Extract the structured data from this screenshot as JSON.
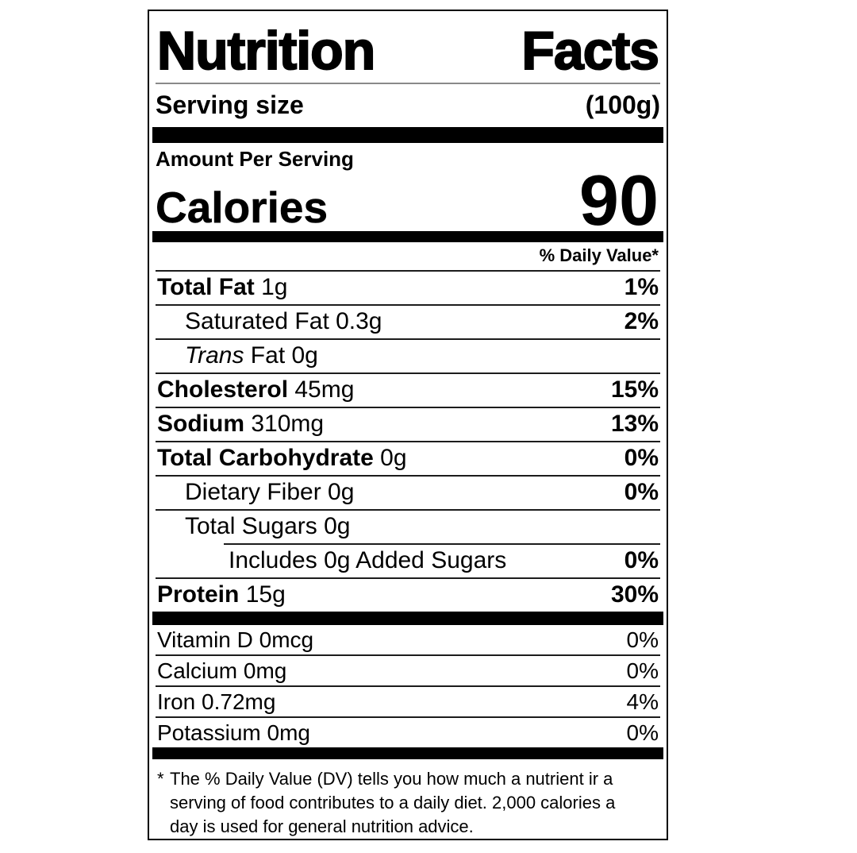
{
  "label": {
    "title_words": [
      "Nutrition",
      "Facts"
    ],
    "serving_size_label": "Serving size",
    "serving_size_value": "(100g)",
    "amount_per_serving": "Amount Per Serving",
    "calories_label": "Calories",
    "calories_value": "90",
    "daily_value_header": "% Daily Value*",
    "rows": [
      {
        "strong": "Total Fat",
        "rest": " 1g",
        "dv": "1%"
      },
      {
        "rest": "Saturated Fat 0.3g",
        "dv": "2%"
      },
      {
        "em": "Trans",
        "rest": " Fat 0g",
        "dv": ""
      },
      {
        "strong": "Cholesterol",
        "rest": " 45mg",
        "dv": "15%"
      },
      {
        "strong": "Sodium",
        "rest": " 310mg",
        "dv": "13%"
      },
      {
        "strong": "Total Carbohydrate",
        "rest": " 0g",
        "dv": "0%"
      },
      {
        "rest": "Dietary Fiber 0g",
        "dv": "0%"
      },
      {
        "rest": "Total Sugars 0g",
        "dv": ""
      },
      {
        "rest": "Includes 0g Added Sugars",
        "dv": "0%"
      },
      {
        "strong": "Protein",
        "rest": " 15g",
        "dv": "30%"
      }
    ],
    "micronutrients": [
      {
        "name": "Vitamin D 0mcg",
        "dv": "0%"
      },
      {
        "name": "Calcium 0mg",
        "dv": "0%"
      },
      {
        "name": "Iron 0.72mg",
        "dv": "4%"
      },
      {
        "name": "Potassium 0mg",
        "dv": "0%"
      }
    ],
    "footnote_marker": "*",
    "footnote_lines": [
      "The % Daily Value (DV) tells you how much a nutrient ir a",
      "serving of food contributes to a daily diet. 2,000 calories a",
      "day is used for general nutrition advice."
    ],
    "colors": {
      "ink": "#000000",
      "background": "#ffffff"
    }
  }
}
